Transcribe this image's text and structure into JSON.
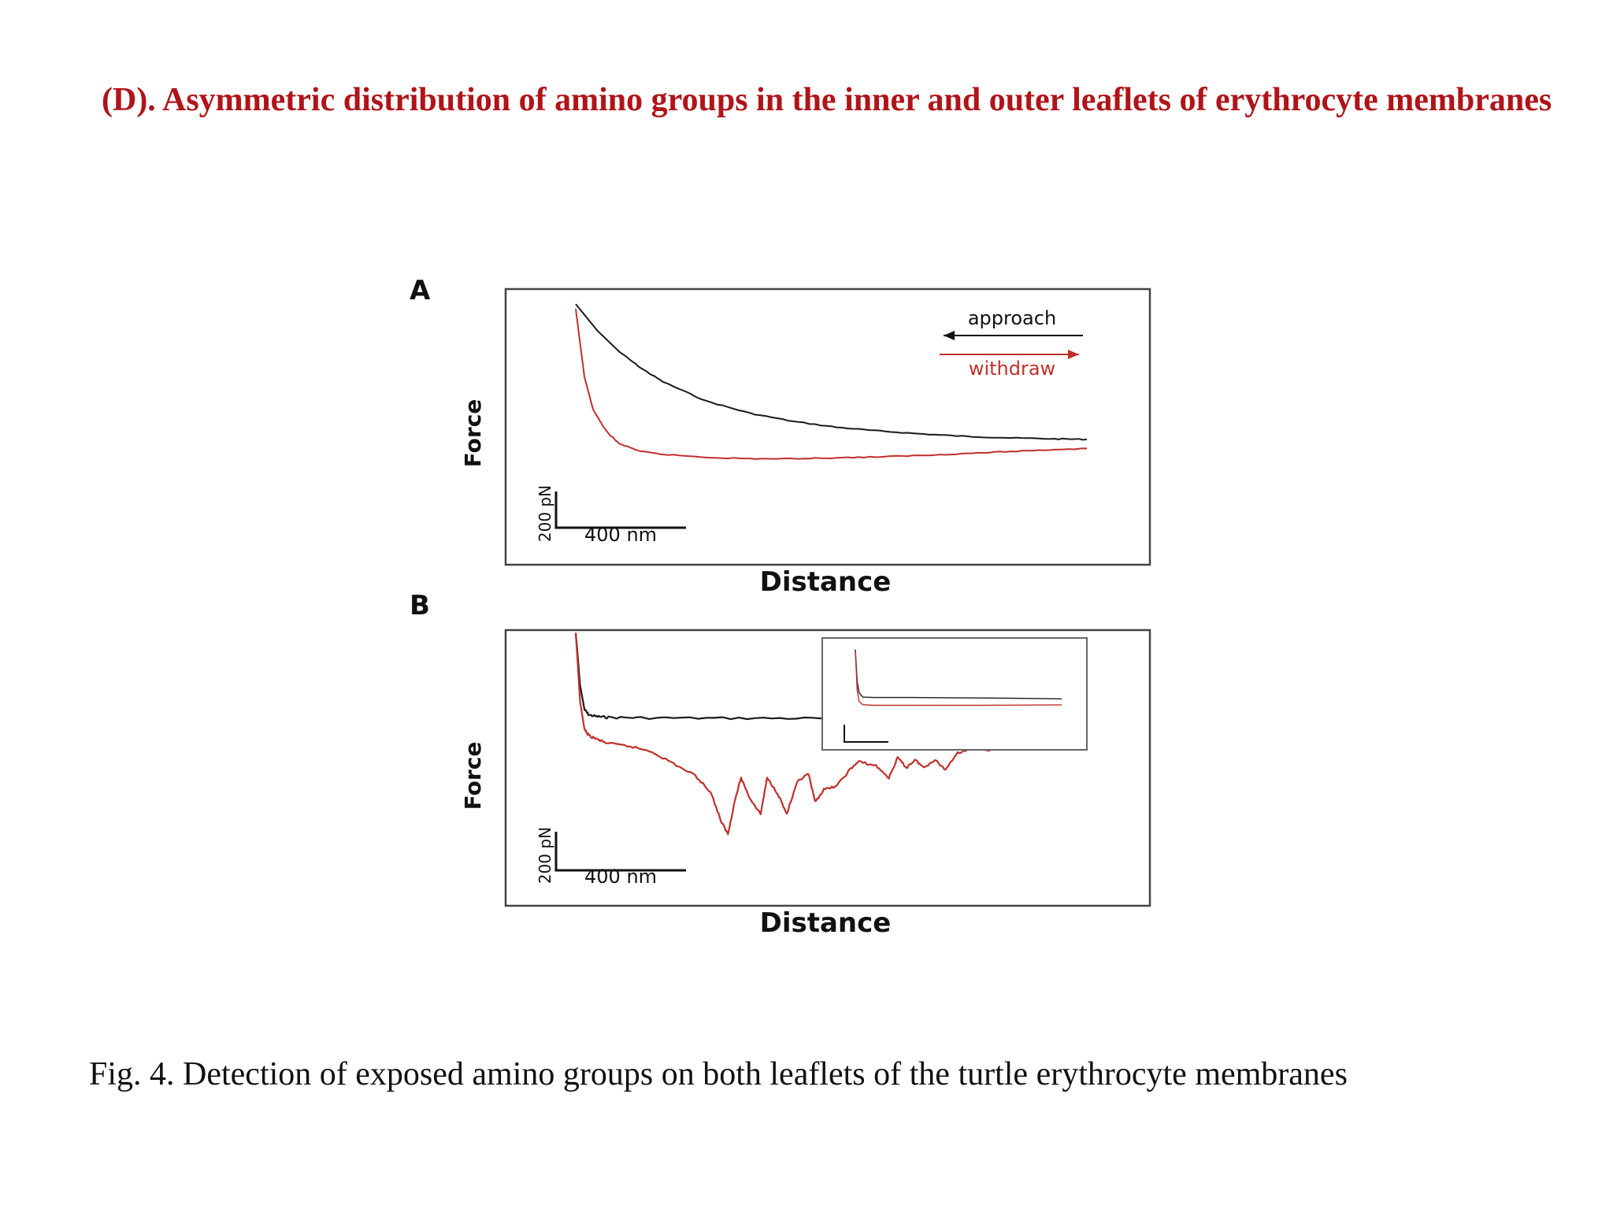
{
  "slide": {
    "title": "(D). Asymmetric distribution of amino groups in the inner and outer leaflets of erythrocyte membranes",
    "caption": "Fig. 4. Detection of exposed amino groups on both leaflets of the  turtle erythrocyte membranes"
  },
  "colors": {
    "title": "#b01419",
    "approach": "#1a1a1a",
    "withdraw": "#c0302b"
  },
  "chart_data": [
    {
      "panel": "A",
      "type": "line",
      "xlabel": "Distance",
      "ylabel": "Force",
      "scale_bar": {
        "y": "200 pN",
        "x": "400 nm"
      },
      "legend": {
        "position": "top-right",
        "entries": [
          "approach",
          "withdraw"
        ]
      },
      "x_unit": "nm",
      "y_unit": "pN",
      "series": [
        {
          "name": "approach",
          "x": [
            0,
            100,
            200,
            300,
            400,
            600,
            800,
            1000,
            1200,
            1400,
            1600,
            1800,
            2000,
            2200,
            2350
          ],
          "y": [
            310,
            255,
            212,
            178,
            150,
            110,
            85,
            68,
            56,
            48,
            42,
            37,
            34,
            32,
            31
          ]
        },
        {
          "name": "withdraw",
          "x": [
            0,
            40,
            80,
            140,
            200,
            300,
            400,
            600,
            800,
            1000,
            1200,
            1400,
            1600,
            1800,
            2000,
            2200,
            2350
          ],
          "y": [
            300,
            160,
            92,
            48,
            22,
            6,
            0,
            -6,
            -9,
            -9,
            -7,
            -5,
            -2,
            2,
            6,
            10,
            12
          ]
        }
      ]
    },
    {
      "panel": "B",
      "type": "line",
      "xlabel": "Distance",
      "ylabel": "Force",
      "scale_bar": {
        "y": "200 pN",
        "x": "400 nm"
      },
      "x_unit": "nm",
      "y_unit": "pN",
      "series": [
        {
          "name": "approach",
          "x": [
            0,
            20,
            40,
            60,
            100,
            150,
            300,
            600,
            900,
            1200,
            1500,
            1800,
            2100,
            2350
          ],
          "y": [
            300,
            170,
            110,
            96,
            92,
            90,
            89,
            88,
            88,
            87,
            86,
            85,
            83,
            82
          ]
        },
        {
          "name": "withdraw",
          "x": [
            0,
            20,
            40,
            60,
            100,
            150,
            250,
            350,
            450,
            550,
            620,
            670,
            700,
            730,
            760,
            800,
            850,
            880,
            930,
            970,
            1020,
            1070,
            1100,
            1140,
            1200,
            1260,
            1300,
            1380,
            1440,
            1480,
            1520,
            1560,
            1600,
            1650,
            1700,
            1750,
            1800,
            1900,
            2000,
            2100,
            2200,
            2350
          ],
          "y": [
            300,
            130,
            60,
            45,
            35,
            25,
            18,
            5,
            -25,
            -55,
            -95,
            -170,
            -200,
            -120,
            -60,
            -110,
            -150,
            -60,
            -100,
            -150,
            -70,
            -50,
            -120,
            -90,
            -80,
            -40,
            -20,
            -30,
            -60,
            -10,
            -35,
            -15,
            -35,
            -15,
            -40,
            0,
            10,
            10,
            40,
            55,
            60,
            60
          ]
        }
      ],
      "inset": {
        "series": [
          {
            "name": "approach",
            "x": [
              0,
              20,
              40,
              80,
              200,
              600,
              1000,
              1400,
              1800,
              2200
            ],
            "y": [
              300,
              150,
              100,
              80,
              78,
              78,
              77,
              76,
              74,
              72
            ]
          },
          {
            "name": "withdraw",
            "x": [
              0,
              20,
              40,
              80,
              200,
              600,
              1000,
              1400,
              1800,
              2200
            ],
            "y": [
              290,
              110,
              60,
              45,
              42,
              42,
              42,
              42,
              43,
              44
            ]
          }
        ]
      }
    }
  ]
}
